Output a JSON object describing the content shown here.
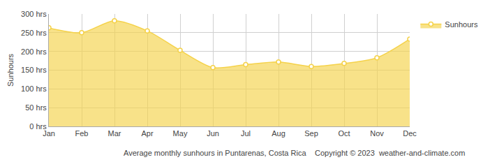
{
  "chart_data": {
    "type": "area",
    "xlabel": "Average monthly sunhours in Puntarenas, Costa Rica",
    "ylabel": "Sunhours",
    "annotations": [
      "Copyright © 2023  weather-and-climate.com"
    ],
    "categories": [
      "Jan",
      "Feb",
      "Mar",
      "Apr",
      "May",
      "Jun",
      "Jul",
      "Aug",
      "Sep",
      "Oct",
      "Nov",
      "Dec"
    ],
    "series": [
      {
        "name": "Sunhours",
        "color": "#f5d24a",
        "marker": "circle",
        "values": [
          263,
          250,
          282,
          255,
          203,
          157,
          165,
          172,
          160,
          168,
          183,
          233
        ]
      }
    ],
    "ylim": [
      0,
      300
    ],
    "yticks": [
      {
        "value": 0,
        "label": "0 hrs"
      },
      {
        "value": 50,
        "label": "50 hrs"
      },
      {
        "value": 100,
        "label": "100 hrs"
      },
      {
        "value": 150,
        "label": "150 hrs"
      },
      {
        "value": 200,
        "label": "200 hrs"
      },
      {
        "value": 250,
        "label": "250 hrs"
      },
      {
        "value": 300,
        "label": "300 hrs"
      }
    ],
    "grid": true,
    "legend": "top right"
  }
}
